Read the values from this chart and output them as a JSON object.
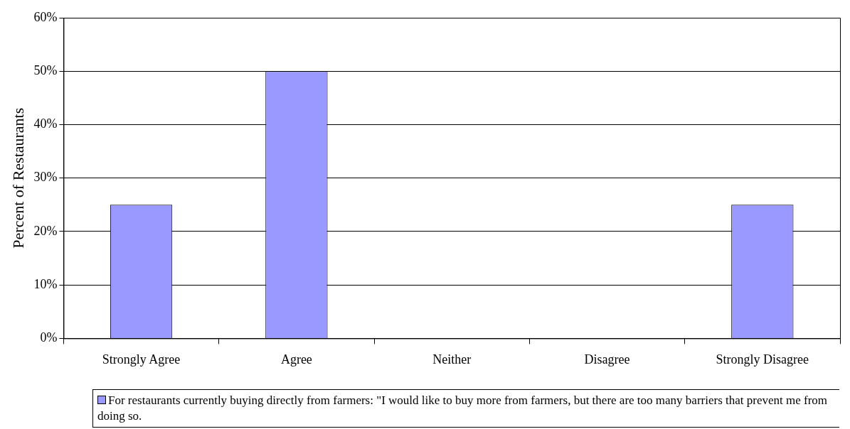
{
  "chart_data": {
    "type": "bar",
    "ylabel": "Percent of Restaurants",
    "categories": [
      "Strongly Agree",
      "Agree",
      "Neither",
      "Disagree",
      "Strongly Disagree"
    ],
    "series": [
      {
        "name": "For restaurants currently buying directly from farmers: \"I would like to buy more from farmers, but there are too many barriers that prevent me from doing so.",
        "color": "#9999ff",
        "values": [
          25,
          50,
          0,
          0,
          25
        ]
      }
    ],
    "ylim": [
      0,
      60
    ],
    "yticks": [
      {
        "value": 0,
        "label": "0%"
      },
      {
        "value": 10,
        "label": "10%"
      },
      {
        "value": 20,
        "label": "20%"
      },
      {
        "value": 30,
        "label": "30%"
      },
      {
        "value": 40,
        "label": "40%"
      },
      {
        "value": 50,
        "label": "50%"
      },
      {
        "value": 60,
        "label": "60%"
      }
    ],
    "grid": "y",
    "legend": "bottom"
  }
}
